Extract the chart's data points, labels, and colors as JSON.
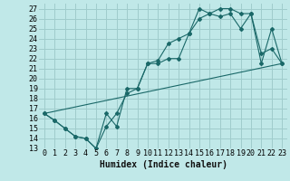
{
  "xlabel": "Humidex (Indice chaleur)",
  "background_color": "#c0e8e8",
  "grid_color": "#a0cccc",
  "line_color": "#1a6868",
  "xlim": [
    -0.5,
    23.5
  ],
  "ylim": [
    13,
    27.5
  ],
  "xticks": [
    0,
    1,
    2,
    3,
    4,
    5,
    6,
    7,
    8,
    9,
    10,
    11,
    12,
    13,
    14,
    15,
    16,
    17,
    18,
    19,
    20,
    21,
    22,
    23
  ],
  "yticks": [
    13,
    14,
    15,
    16,
    17,
    18,
    19,
    20,
    21,
    22,
    23,
    24,
    25,
    26,
    27
  ],
  "line1_x": [
    0,
    1,
    2,
    3,
    4,
    5,
    6,
    7,
    8,
    9,
    10,
    11,
    12,
    13,
    14,
    15,
    16,
    17,
    18,
    19,
    20,
    21,
    22,
    23
  ],
  "line1_y": [
    16.5,
    15.8,
    15.0,
    14.2,
    14.0,
    13.0,
    16.5,
    15.2,
    19.0,
    19.0,
    21.5,
    21.5,
    22.0,
    22.0,
    24.5,
    27.0,
    26.5,
    27.0,
    27.0,
    26.5,
    26.5,
    22.5,
    23.0,
    21.5
  ],
  "line2_x": [
    0,
    1,
    2,
    3,
    4,
    5,
    6,
    7,
    8,
    9,
    10,
    11,
    12,
    13,
    14,
    15,
    16,
    17,
    18,
    19,
    20,
    21,
    22,
    23
  ],
  "line2_y": [
    16.5,
    15.8,
    15.0,
    14.2,
    14.0,
    13.0,
    15.2,
    16.5,
    18.5,
    19.0,
    21.5,
    21.8,
    23.5,
    24.0,
    24.5,
    26.0,
    26.5,
    26.2,
    26.5,
    25.0,
    26.5,
    21.5,
    25.0,
    21.5
  ],
  "line3_x": [
    0,
    23
  ],
  "line3_y": [
    16.5,
    21.5
  ],
  "xlabel_fontsize": 7,
  "tick_fontsize": 6
}
